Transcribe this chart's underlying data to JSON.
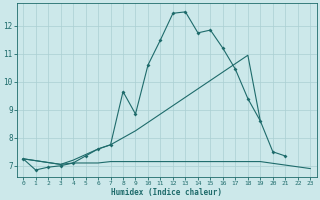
{
  "xlabel": "Humidex (Indice chaleur)",
  "xlim": [
    -0.5,
    23.5
  ],
  "ylim": [
    6.6,
    12.8
  ],
  "xticks": [
    0,
    1,
    2,
    3,
    4,
    5,
    6,
    7,
    8,
    9,
    10,
    11,
    12,
    13,
    14,
    15,
    16,
    17,
    18,
    19,
    20,
    21,
    22,
    23
  ],
  "yticks": [
    7,
    8,
    9,
    10,
    11,
    12
  ],
  "background_color": "#cce8ea",
  "grid_color": "#aacfd2",
  "line_color": "#1e6b6b",
  "curve1_x": [
    0,
    1,
    2,
    3,
    4,
    5,
    6,
    7,
    8,
    9,
    10,
    11,
    12,
    13,
    14,
    15,
    16,
    17,
    18,
    19,
    20,
    21
  ],
  "curve1_y": [
    7.25,
    6.85,
    6.95,
    7.0,
    7.1,
    7.35,
    7.6,
    7.75,
    9.65,
    8.85,
    10.6,
    11.5,
    12.45,
    12.5,
    11.75,
    11.85,
    11.2,
    10.45,
    9.4,
    8.6,
    7.5,
    7.35
  ],
  "curve2_x": [
    0,
    3,
    4,
    5,
    6,
    7,
    8,
    9,
    10,
    11,
    12,
    13,
    14,
    15,
    16,
    17,
    18,
    19
  ],
  "curve2_y": [
    7.25,
    7.05,
    7.2,
    7.4,
    7.6,
    7.75,
    8.0,
    8.25,
    8.55,
    8.85,
    9.15,
    9.45,
    9.75,
    10.05,
    10.35,
    10.65,
    10.95,
    8.6
  ],
  "curve3_x": [
    0,
    3,
    4,
    5,
    6,
    7,
    8,
    9,
    10,
    11,
    12,
    13,
    14,
    15,
    16,
    17,
    18,
    19,
    23
  ],
  "curve3_y": [
    7.25,
    7.05,
    7.1,
    7.1,
    7.1,
    7.15,
    7.15,
    7.15,
    7.15,
    7.15,
    7.15,
    7.15,
    7.15,
    7.15,
    7.15,
    7.15,
    7.15,
    7.15,
    6.9
  ]
}
